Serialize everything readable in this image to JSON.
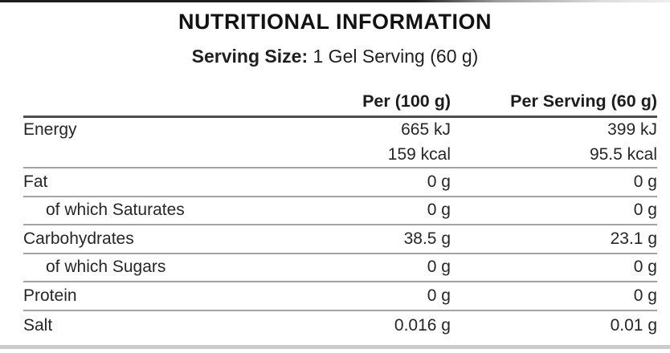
{
  "colors": {
    "text_color": "#262626",
    "title_color": "#121212",
    "rule_dark": "#4d4d4d",
    "rule_light": "#a3a3a3",
    "bottom_band": "#cbcbcb",
    "top_band_dark": "#1e1e1e",
    "top_band_light": "#dddddd"
  },
  "label": {
    "title": "NUTRITIONAL INFORMATION",
    "serving_size_label": "Serving Size:",
    "serving_size_value": "1 Gel Serving (60 g)",
    "columns": [
      "",
      "Per (100 g)",
      "Per Serving (60 g)"
    ],
    "rows": [
      {
        "name": "Energy",
        "per_100g": "665 kJ",
        "per_serving": "399 kJ",
        "indent": false,
        "divider_below": false
      },
      {
        "name": "",
        "per_100g": "159 kcal",
        "per_serving": "95.5 kcal",
        "indent": false,
        "divider_below": true
      },
      {
        "name": "Fat",
        "per_100g": "0 g",
        "per_serving": "0 g",
        "indent": false,
        "divider_below": true
      },
      {
        "name": "of which Saturates",
        "per_100g": "0 g",
        "per_serving": "0 g",
        "indent": true,
        "divider_below": true
      },
      {
        "name": "Carbohydrates",
        "per_100g": "38.5 g",
        "per_serving": "23.1 g",
        "indent": false,
        "divider_below": true
      },
      {
        "name": "of which Sugars",
        "per_100g": "0 g",
        "per_serving": "0 g",
        "indent": true,
        "divider_below": true
      },
      {
        "name": "Protein",
        "per_100g": "0 g",
        "per_serving": "0 g",
        "indent": false,
        "divider_below": true
      },
      {
        "name": "Salt",
        "per_100g": "0.016 g",
        "per_serving": "0.01 g",
        "indent": false,
        "divider_below": false
      }
    ]
  }
}
